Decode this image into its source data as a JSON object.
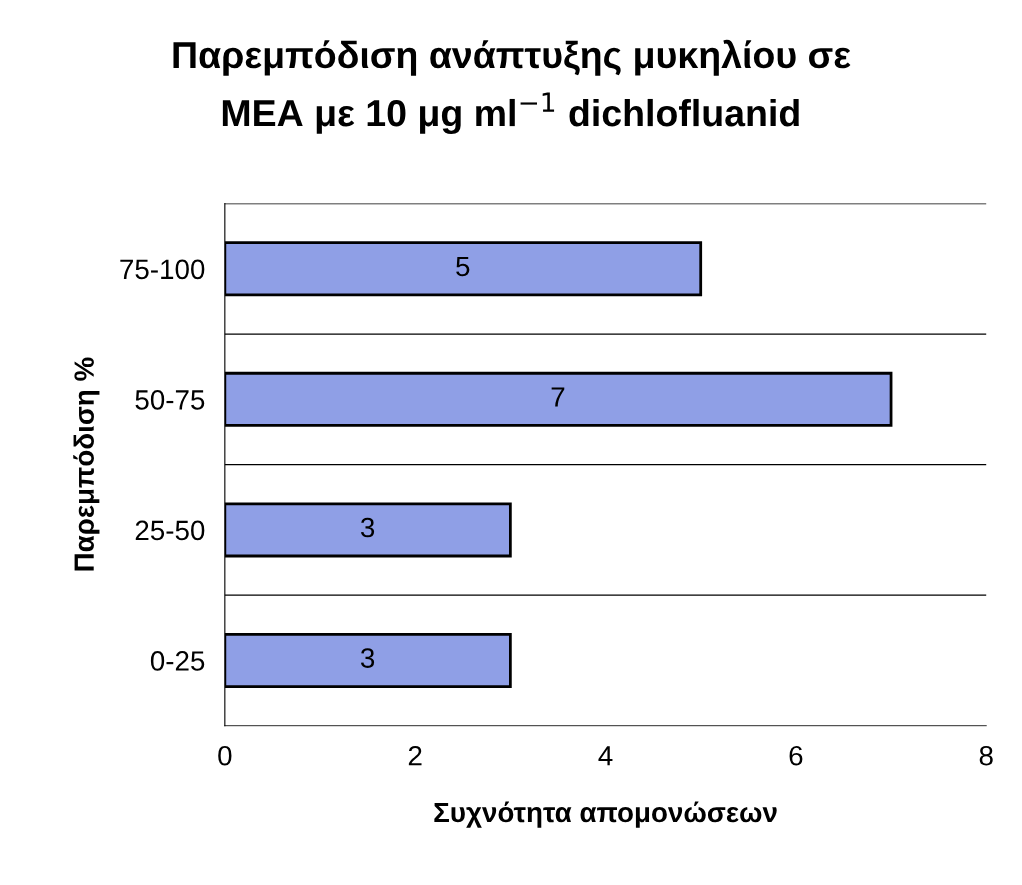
{
  "chart_data": {
    "type": "bar",
    "orientation": "horizontal",
    "title": "Παρεμπόδιση ανάπτυξης μυκηλίου σε\nMEA με 10 μg ml$^{−1}$ dichlofluanid",
    "xlabel": "Συχνότητα απομονώσεων",
    "ylabel": "Παρεμπόδιση %",
    "categories": [
      "75-100",
      "50-75",
      "25-50",
      "0-25"
    ],
    "values": [
      5,
      7,
      3,
      3
    ],
    "color": "#8f9fe6",
    "data_labels": true,
    "xlim": [
      0,
      8
    ],
    "xticks": [
      0,
      2,
      4,
      6,
      8
    ],
    "grid": "y",
    "legend": false
  }
}
